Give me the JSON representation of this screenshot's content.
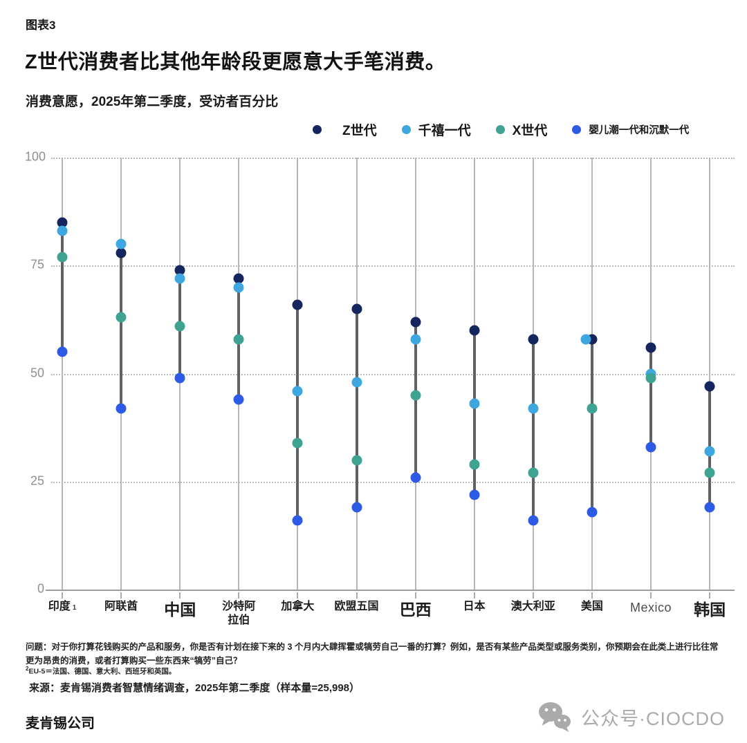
{
  "page": {
    "kicker": "图表3",
    "company": "麦肯锡公司"
  },
  "chart_data": {
    "type": "scatter",
    "subtype": "dumbbell-dot-plot",
    "title": "Z世代消费者比其他年龄段更愿意大手笔消费。",
    "subtitle": "消费意愿，2025年第二季度，受访者百分比",
    "categories": [
      "印度",
      "阿联酋",
      "中国",
      "沙特阿\n拉伯",
      "加拿大",
      "欧盟五国",
      "巴西",
      "日本",
      "澳大利亚",
      "美国",
      "Mexico",
      "韩国"
    ],
    "category_styles": [
      {
        "size": "s",
        "marker": "1"
      },
      {
        "size": "s"
      },
      {
        "size": "l"
      },
      {
        "size": "s"
      },
      {
        "size": "s"
      },
      {
        "size": "s"
      },
      {
        "size": "l"
      },
      {
        "size": "s"
      },
      {
        "size": "s"
      },
      {
        "size": "s"
      },
      {
        "size": "m"
      },
      {
        "size": "l"
      }
    ],
    "series": [
      {
        "name": "Z世代",
        "color": "#15265e",
        "values": [
          85,
          78,
          74,
          72,
          66,
          65,
          62,
          60,
          58,
          58,
          56,
          47
        ]
      },
      {
        "name": "千禧一代",
        "color": "#3ea7e0",
        "values": [
          83,
          80,
          72,
          70,
          46,
          48,
          58,
          43,
          42,
          58,
          50,
          32
        ]
      },
      {
        "name": "X世代",
        "color": "#3fa391",
        "values": [
          77,
          63,
          61,
          58,
          34,
          30,
          45,
          29,
          27,
          42,
          49,
          27
        ]
      },
      {
        "name": "婴儿潮一代和沉默一代",
        "color": "#2e5be5",
        "values": [
          55,
          42,
          49,
          44,
          16,
          19,
          26,
          22,
          16,
          18,
          33,
          19
        ]
      }
    ],
    "ylim": [
      0,
      100
    ],
    "yticks": [
      0,
      25,
      50,
      75,
      100
    ],
    "grid": {
      "horizontal": "dotted",
      "vertical": true
    },
    "legend_position": "top-right"
  },
  "footnotes": {
    "question": "问题：对于你打算花钱购买的产品和服务，你是否有计划在接下来的 3 个月内大肆挥霍或犒劳自己一番的打算？例如，是否有某些产品类型或服务类别，你预期会在此类上进行比往常更为昂贵的消费，或者打算购买一些东西来“犒劳”自己？",
    "eu5_marker": "2",
    "eu5_text": "EU-5＝法国、德国、意大利、西班牙和英国。",
    "source": "来源：麦肯锡消费者智慧情绪调查，2025年第二季度（样本量=25,998）"
  },
  "watermark": {
    "icon": "wechat-icon",
    "text": "公众号·CIOCDO"
  }
}
